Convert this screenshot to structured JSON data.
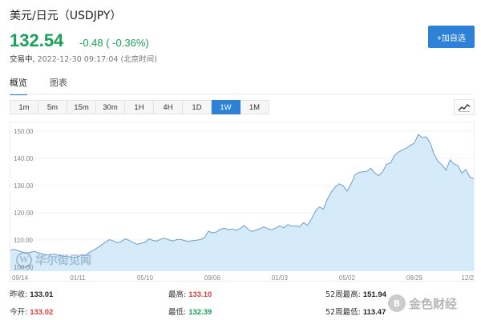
{
  "header": {
    "title": "美元/日元（USDJPY）",
    "price": "132.54",
    "change": "-0.48 ( -0.36%)",
    "status_label": "交易中,",
    "timestamp": "2022-12-30 09:17:04 (北京时间)"
  },
  "actions": {
    "add_watchlist": "+加自选"
  },
  "tabs": [
    {
      "label": "概览",
      "active": true
    },
    {
      "label": "图表",
      "active": false
    }
  ],
  "ranges": [
    {
      "label": "1m",
      "active": false
    },
    {
      "label": "5m",
      "active": false
    },
    {
      "label": "15m",
      "active": false
    },
    {
      "label": "30m",
      "active": false
    },
    {
      "label": "1H",
      "active": false
    },
    {
      "label": "4H",
      "active": false
    },
    {
      "label": "1D",
      "active": false
    },
    {
      "label": "1W",
      "active": true
    },
    {
      "label": "1M",
      "active": false
    }
  ],
  "chart_type_icon": "line-chart-icon",
  "chart_data": {
    "type": "area",
    "yticks": [
      "150.00",
      "140.00",
      "130.00",
      "120.00",
      "110.00",
      "100.00"
    ],
    "ylim": [
      98.5,
      152
    ],
    "xticks": [
      {
        "label": "09/14",
        "index": 0
      },
      {
        "label": "01/11",
        "index": 17
      },
      {
        "label": "05/10",
        "index": 34
      },
      {
        "label": "09/06",
        "index": 51
      },
      {
        "label": "01/03",
        "index": 68
      },
      {
        "label": "05/02",
        "index": 85
      },
      {
        "label": "08/29",
        "index": 102
      },
      {
        "label": "12/2",
        "index": 117
      }
    ],
    "values": [
      106.3,
      106.5,
      106.0,
      105.6,
      105.2,
      105.4,
      105.8,
      105.3,
      104.9,
      104.5,
      104.6,
      104.8,
      104.4,
      104.1,
      103.9,
      103.8,
      103.6,
      103.8,
      104.5,
      104.3,
      105.5,
      106.2,
      107.1,
      108.1,
      109.2,
      110.1,
      109.6,
      108.9,
      109.4,
      110.4,
      109.8,
      109.0,
      108.4,
      108.8,
      109.1,
      110.4,
      109.8,
      109.6,
      110.3,
      110.6,
      110.0,
      109.6,
      110.1,
      110.2,
      109.7,
      109.5,
      109.7,
      109.9,
      110.1,
      110.8,
      113.2,
      112.6,
      112.9,
      113.9,
      114.3,
      113.8,
      114.0,
      113.5,
      114.2,
      115.3,
      113.9,
      113.1,
      113.6,
      114.1,
      114.8,
      114.1,
      113.7,
      114.4,
      115.2,
      114.4,
      115.6,
      115.1,
      115.2,
      114.8,
      116.3,
      115.4,
      117.6,
      120.5,
      122.1,
      121.3,
      124.8,
      127.5,
      129.4,
      130.6,
      129.9,
      127.9,
      130.5,
      133.9,
      134.8,
      135.0,
      135.2,
      136.3,
      134.6,
      133.6,
      135.1,
      137.8,
      138.3,
      141.1,
      142.3,
      143.0,
      143.7,
      144.8,
      145.6,
      148.7,
      147.6,
      147.9,
      145.6,
      141.3,
      138.8,
      137.5,
      135.6,
      139.4,
      137.9,
      137.3,
      134.5,
      135.9,
      133.1,
      132.54
    ],
    "line_color": "#6a9ec8",
    "fill_color": "#d6ebf9"
  },
  "watermark": {
    "text": "华尔街见闻",
    "logo": "W"
  },
  "stats": {
    "prev_close_label": "昨收:",
    "prev_close": "133.01",
    "open_label": "今开:",
    "open": "133.02",
    "high_label": "最高:",
    "high": "133.10",
    "low_label": "最低:",
    "low": "132.39",
    "week52_high_label": "52周最高:",
    "week52_high": "151.94",
    "week52_low_label": "52周最低:",
    "week52_low": "113.47"
  },
  "brand": {
    "text": "金色财经",
    "logo": "B"
  },
  "colors": {
    "accent": "#2d82d8",
    "up": "#e03c3c",
    "down": "#18a058"
  }
}
